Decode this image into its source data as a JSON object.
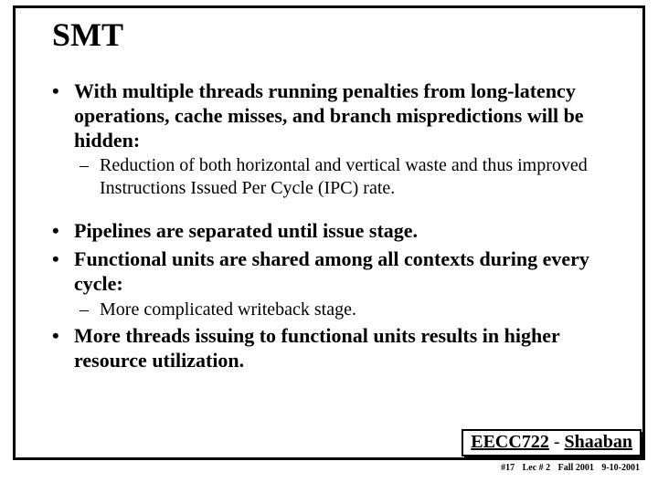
{
  "title": "SMT",
  "bullets": {
    "b1": "With multiple threads running penalties from long-latency operations, cache misses, and branch mispredictions will be hidden:",
    "b1_1": "Reduction of both horizontal and vertical waste and thus improved Instructions Issued Per Cycle (IPC) rate.",
    "b2": "Pipelines are separated until issue stage.",
    "b3": "Functional units are shared among all contexts during every cycle:",
    "b3_1": "More complicated writeback stage.",
    "b4": "More threads issuing to functional units results in higher resource utilization."
  },
  "footer": {
    "course": "EECC722",
    "sep": " - ",
    "author": "Shaaban"
  },
  "subfooter": {
    "slide_no": "#17",
    "lecture": "Lec # 2",
    "term": "Fall 2001",
    "date": "9-10-2001"
  },
  "colors": {
    "text": "#000000",
    "background": "#ffffff",
    "border": "#000000"
  }
}
